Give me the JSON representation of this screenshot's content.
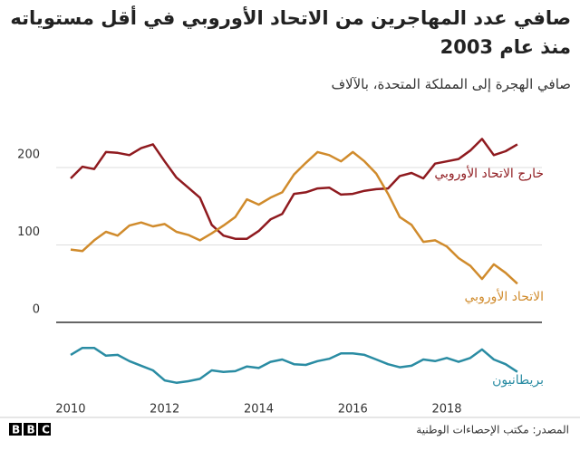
{
  "chart_data": {
    "type": "line",
    "title": "صافي عدد المهاجرين من الاتحاد الأوروبي في أقل مستوياته منذ عام 2003",
    "subtitle": "صافي الهجرة إلى المملكة المتحدة، بالآلاف",
    "x": [
      2010,
      2010.25,
      2010.5,
      2010.75,
      2011,
      2011.25,
      2011.5,
      2011.75,
      2012,
      2012.25,
      2012.5,
      2012.75,
      2013,
      2013.25,
      2013.5,
      2013.75,
      2014,
      2014.25,
      2014.5,
      2014.75,
      2015,
      2015.25,
      2015.5,
      2015.75,
      2016,
      2016.25,
      2016.5,
      2016.75,
      2017,
      2017.25,
      2017.5,
      2017.75,
      2018,
      2018.25,
      2018.5,
      2018.75,
      2019,
      2019.25,
      2019.5
    ],
    "series": [
      {
        "name": "خارج الاتحاد الأوروبي",
        "color": "#8f1a1f",
        "values": [
          186,
          201,
          198,
          220,
          219,
          216,
          225,
          230,
          208,
          187,
          174,
          161,
          126,
          112,
          108,
          108,
          118,
          133,
          140,
          166,
          168,
          173,
          174,
          165,
          166,
          170,
          172,
          173,
          189,
          193,
          186,
          205,
          208,
          211,
          222,
          237,
          216,
          221,
          230
        ]
      },
      {
        "name": "الاتحاد الأوروبي",
        "color": "#d08b2c",
        "values": [
          94,
          92,
          106,
          117,
          112,
          125,
          129,
          124,
          127,
          117,
          113,
          106,
          115,
          125,
          136,
          159,
          152,
          161,
          168,
          191,
          206,
          220,
          216,
          208,
          220,
          208,
          192,
          166,
          136,
          126,
          104,
          106,
          98,
          83,
          73,
          56,
          75,
          64,
          50
        ]
      },
      {
        "name": "بريطانيون",
        "color": "#2a8ca3",
        "values": [
          -42,
          -33,
          -33,
          -43,
          -42,
          -50,
          -56,
          -62,
          -75,
          -78,
          -76,
          -73,
          -62,
          -64,
          -63,
          -57,
          -59,
          -51,
          -48,
          -54,
          -55,
          -50,
          -47,
          -40,
          -40,
          -42,
          -48,
          -54,
          -58,
          -56,
          -48,
          -50,
          -46,
          -51,
          -46,
          -35,
          -48,
          -54,
          -64
        ]
      }
    ],
    "xlim": [
      2009.7,
      2020.0
    ],
    "xticks": [
      2010,
      2012,
      2014,
      2016,
      2018
    ],
    "ylim": [
      -100,
      240
    ],
    "yticks": [
      0,
      100,
      200
    ],
    "grid": true,
    "source": "المصدر: مكتب الإحصاءات الوطنية",
    "logo": "BBC"
  }
}
